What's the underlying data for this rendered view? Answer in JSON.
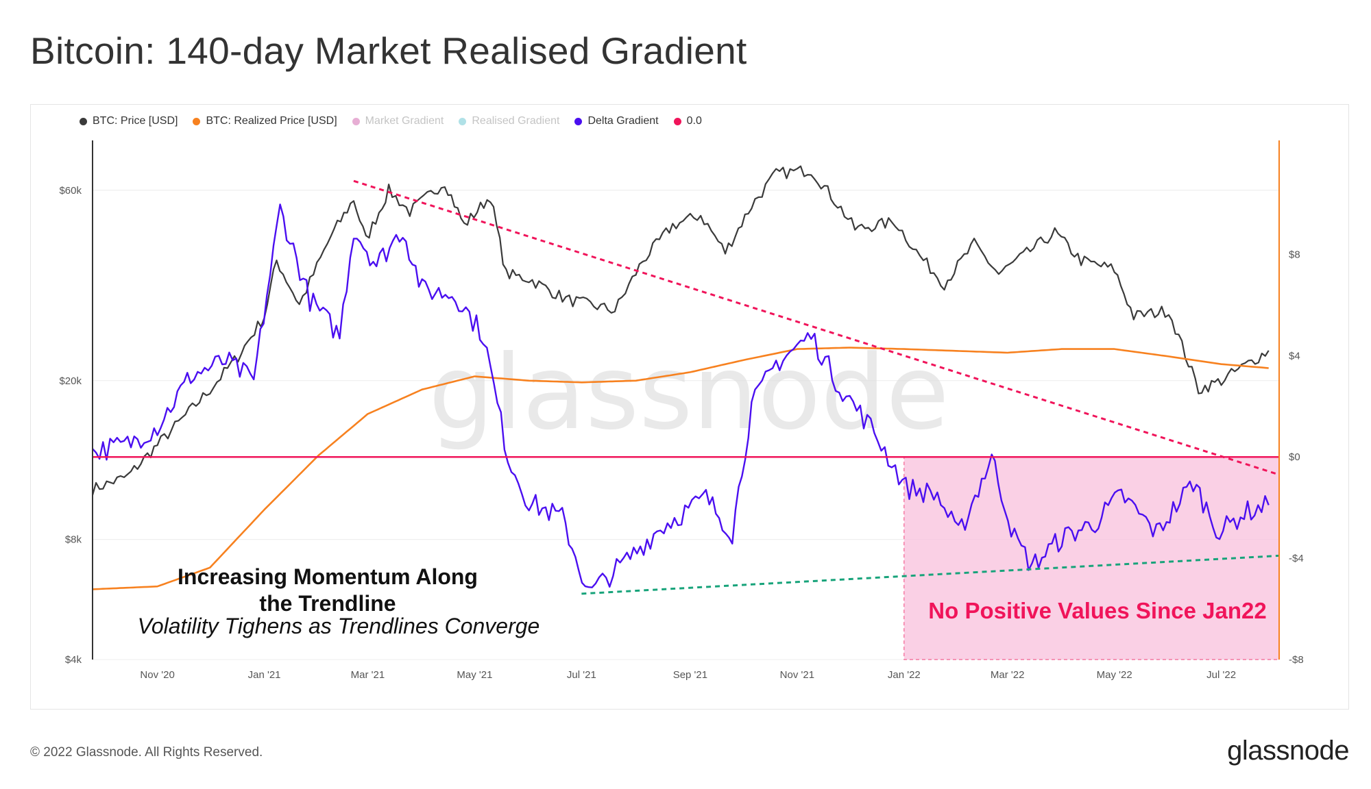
{
  "title": "Bitcoin: 140-day Market Realised Gradient",
  "legend": [
    {
      "label": "BTC: Price [USD]",
      "color": "#3a3a3a",
      "muted": false
    },
    {
      "label": "BTC: Realized Price [USD]",
      "color": "#f7811f",
      "muted": false
    },
    {
      "label": "Market Gradient",
      "color": "#d36bb0",
      "muted": true
    },
    {
      "label": "Realised Gradient",
      "color": "#6fc8d3",
      "muted": true
    },
    {
      "label": "Delta Gradient",
      "color": "#4a0ef0",
      "muted": false
    },
    {
      "label": "0.0",
      "color": "#f0145a",
      "muted": false
    }
  ],
  "watermark": "glassnode",
  "footer": "© 2022 Glassnode. All Rights Reserved.",
  "brand": "glassnode",
  "annotations": {
    "momentum_line1": "Increasing Momentum Along",
    "momentum_line2": "the Trendline",
    "volatility": "Volatility Tighens as Trendlines Converge",
    "no_positive": "No Positive Values Since Jan22"
  },
  "chart_data": {
    "type": "line",
    "title": "Bitcoin: 140-day Market Realised Gradient",
    "x_range": [
      "2020-09-25",
      "2022-08-03"
    ],
    "x_ticks": [
      {
        "date": "2020-11-01",
        "label": "Nov '20"
      },
      {
        "date": "2021-01-01",
        "label": "Jan '21"
      },
      {
        "date": "2021-03-01",
        "label": "Mar '21"
      },
      {
        "date": "2021-05-01",
        "label": "May '21"
      },
      {
        "date": "2021-07-01",
        "label": "Jul '21"
      },
      {
        "date": "2021-09-01",
        "label": "Sep '21"
      },
      {
        "date": "2021-11-01",
        "label": "Nov '21"
      },
      {
        "date": "2022-01-01",
        "label": "Jan '22"
      },
      {
        "date": "2022-03-01",
        "label": "Mar '22"
      },
      {
        "date": "2022-05-01",
        "label": "May '22"
      },
      {
        "date": "2022-07-01",
        "label": "Jul '22"
      }
    ],
    "left_axis": {
      "scale": "log",
      "unit": "USD",
      "range": [
        4000,
        80000
      ],
      "ticks": [
        {
          "value": 4000,
          "label": "$4k"
        },
        {
          "value": 8000,
          "label": "$8k"
        },
        {
          "value": 20000,
          "label": "$20k"
        },
        {
          "value": 60000,
          "label": "$60k"
        }
      ]
    },
    "right_axis": {
      "scale": "linear",
      "range": [
        -8,
        12.5
      ],
      "ticks": [
        {
          "value": 8,
          "label": "$8"
        },
        {
          "value": 4,
          "label": "$4"
        },
        {
          "value": 0,
          "label": "$0"
        },
        {
          "value": -4,
          "label": "-$4"
        },
        {
          "value": -8,
          "label": "-$8"
        }
      ]
    },
    "series": [
      {
        "name": "BTC: Price [USD]",
        "axis": "left",
        "color": "#3a3a3a",
        "points": [
          [
            "2020-09-25",
            10700
          ],
          [
            "2020-10-15",
            11500
          ],
          [
            "2020-11-01",
            13800
          ],
          [
            "2020-11-15",
            16000
          ],
          [
            "2020-12-01",
            19000
          ],
          [
            "2020-12-17",
            23000
          ],
          [
            "2021-01-01",
            29000
          ],
          [
            "2021-01-08",
            40000
          ],
          [
            "2021-01-21",
            31000
          ],
          [
            "2021-02-08",
            46000
          ],
          [
            "2021-02-21",
            57000
          ],
          [
            "2021-02-28",
            45000
          ],
          [
            "2021-03-13",
            60000
          ],
          [
            "2021-03-25",
            53000
          ],
          [
            "2021-04-14",
            63000
          ],
          [
            "2021-04-25",
            49000
          ],
          [
            "2021-05-10",
            58000
          ],
          [
            "2021-05-19",
            37000
          ],
          [
            "2021-06-01",
            36000
          ],
          [
            "2021-06-22",
            32000
          ],
          [
            "2021-07-20",
            30000
          ],
          [
            "2021-08-05",
            40000
          ],
          [
            "2021-08-22",
            49000
          ],
          [
            "2021-09-07",
            52000
          ],
          [
            "2021-09-21",
            42000
          ],
          [
            "2021-10-06",
            55000
          ],
          [
            "2021-10-20",
            66000
          ],
          [
            "2021-11-09",
            67500
          ],
          [
            "2021-11-26",
            54000
          ],
          [
            "2021-12-04",
            48000
          ],
          [
            "2021-12-27",
            50000
          ],
          [
            "2022-01-10",
            41000
          ],
          [
            "2022-01-24",
            35000
          ],
          [
            "2022-02-10",
            44000
          ],
          [
            "2022-02-24",
            37000
          ],
          [
            "2022-03-28",
            47000
          ],
          [
            "2022-04-12",
            40000
          ],
          [
            "2022-05-01",
            38000
          ],
          [
            "2022-05-12",
            29000
          ],
          [
            "2022-06-01",
            30000
          ],
          [
            "2022-06-18",
            19000
          ],
          [
            "2022-07-01",
            20000
          ],
          [
            "2022-07-28",
            23800
          ]
        ]
      },
      {
        "name": "BTC: Realized Price [USD]",
        "axis": "left",
        "color": "#f7811f",
        "points": [
          [
            "2020-09-25",
            6000
          ],
          [
            "2020-11-01",
            6100
          ],
          [
            "2020-12-01",
            6800
          ],
          [
            "2021-01-01",
            9500
          ],
          [
            "2021-02-01",
            13000
          ],
          [
            "2021-03-01",
            16500
          ],
          [
            "2021-04-01",
            19000
          ],
          [
            "2021-05-01",
            20500
          ],
          [
            "2021-06-01",
            20000
          ],
          [
            "2021-07-01",
            19800
          ],
          [
            "2021-08-01",
            20000
          ],
          [
            "2021-09-01",
            21000
          ],
          [
            "2021-10-01",
            22500
          ],
          [
            "2021-11-01",
            24000
          ],
          [
            "2021-12-01",
            24200
          ],
          [
            "2022-01-01",
            24000
          ],
          [
            "2022-03-01",
            23500
          ],
          [
            "2022-04-01",
            24000
          ],
          [
            "2022-05-01",
            24000
          ],
          [
            "2022-06-01",
            23000
          ],
          [
            "2022-07-01",
            22000
          ],
          [
            "2022-07-28",
            21500
          ]
        ]
      },
      {
        "name": "Delta Gradient",
        "axis": "right",
        "color": "#4a0ef0",
        "points": [
          [
            "2020-09-25",
            0.2
          ],
          [
            "2020-10-15",
            0.5
          ],
          [
            "2020-11-01",
            1.2
          ],
          [
            "2020-11-20",
            3.2
          ],
          [
            "2020-12-10",
            3.8
          ],
          [
            "2020-12-26",
            3.0
          ],
          [
            "2021-01-10",
            9.8
          ],
          [
            "2021-01-27",
            6.2
          ],
          [
            "2021-02-13",
            4.8
          ],
          [
            "2021-02-21",
            9.0
          ],
          [
            "2021-03-06",
            7.6
          ],
          [
            "2021-03-21",
            9.0
          ],
          [
            "2021-04-01",
            6.6
          ],
          [
            "2021-04-20",
            6.4
          ],
          [
            "2021-05-06",
            4.8
          ],
          [
            "2021-05-20",
            0.0
          ],
          [
            "2021-06-01",
            -1.8
          ],
          [
            "2021-06-20",
            -2.4
          ],
          [
            "2021-07-05",
            -5.4
          ],
          [
            "2021-07-25",
            -4.2
          ],
          [
            "2021-08-15",
            -2.8
          ],
          [
            "2021-09-10",
            -1.6
          ],
          [
            "2021-09-25",
            -3.0
          ],
          [
            "2021-10-06",
            2.0
          ],
          [
            "2021-10-20",
            3.7
          ],
          [
            "2021-11-09",
            4.8
          ],
          [
            "2021-11-25",
            2.8
          ],
          [
            "2021-12-15",
            1.0
          ],
          [
            "2022-01-02",
            -1.2
          ],
          [
            "2022-01-20",
            -1.5
          ],
          [
            "2022-02-01",
            -3.1
          ],
          [
            "2022-02-20",
            0.0
          ],
          [
            "2022-03-05",
            -3.2
          ],
          [
            "2022-03-15",
            -4.3
          ],
          [
            "2022-04-01",
            -3.2
          ],
          [
            "2022-04-20",
            -2.6
          ],
          [
            "2022-05-05",
            -1.5
          ],
          [
            "2022-05-25",
            -3.0
          ],
          [
            "2022-06-15",
            -1.0
          ],
          [
            "2022-06-30",
            -3.0
          ],
          [
            "2022-07-14",
            -2.2
          ],
          [
            "2022-07-28",
            -1.9
          ]
        ]
      },
      {
        "name": "0.0",
        "axis": "right",
        "color": "#f0145a",
        "value": 0.0
      }
    ],
    "trendlines": [
      {
        "name": "descending-trendline",
        "color": "#f0145a",
        "axis": "right",
        "from": [
          "2021-02-21",
          10.9
        ],
        "to": [
          "2022-08-03",
          -0.7
        ]
      },
      {
        "name": "ascending-trendline",
        "color": "#17a37a",
        "axis": "right",
        "from": [
          "2021-07-01",
          -5.4
        ],
        "to": [
          "2022-08-03",
          -3.9
        ]
      }
    ],
    "highlight": {
      "from": "2022-01-01",
      "to": "2022-08-03",
      "y_from": 0,
      "y_to": -8,
      "color": "#f9c5df"
    }
  }
}
